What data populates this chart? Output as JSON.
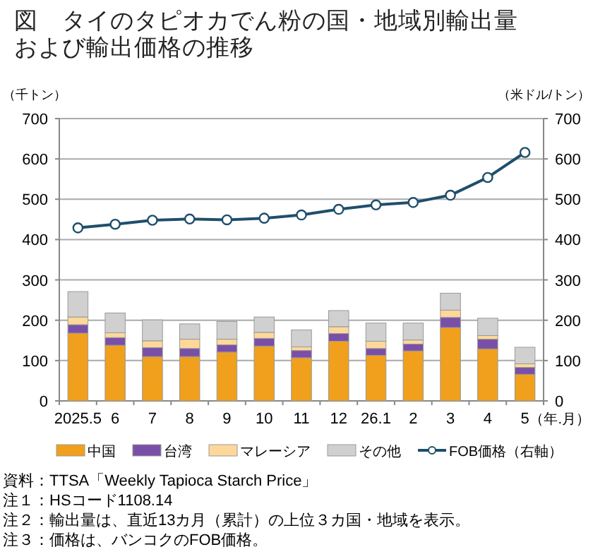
{
  "chart_data": {
    "type": "bar",
    "title": "図　タイのタピオカでん粉の国・地域別輸出量",
    "subtitle": "および輸出価格の推移",
    "ylabel": "（千トン）",
    "y2label": "（米ドル/トン）",
    "xlabel": "（年.月）",
    "categories": [
      "2025.5",
      "6",
      "7",
      "8",
      "9",
      "10",
      "11",
      "12",
      "26.1",
      "2",
      "3",
      "4",
      "5"
    ],
    "stacked": true,
    "grid": "y",
    "legend": "bottom",
    "ylim": [
      0,
      700
    ],
    "yticks": [
      0,
      100,
      200,
      300,
      400,
      500,
      600,
      700
    ],
    "y2lim": [
      0,
      700
    ],
    "y2ticks": [
      0,
      100,
      200,
      300,
      400,
      500,
      600,
      700
    ],
    "series": [
      {
        "name": "中国",
        "color": "#f0a01c",
        "values": [
          168,
          138,
          110,
          110,
          121,
          136,
          107,
          148,
          113,
          124,
          182,
          129,
          66
        ]
      },
      {
        "name": "台湾",
        "color": "#7a4fa8",
        "values": [
          21,
          19,
          22,
          20,
          18,
          19,
          18,
          19,
          17,
          17,
          25,
          24,
          17
        ]
      },
      {
        "name": "マレーシア",
        "color": "#fdd89a",
        "values": [
          19,
          12,
          17,
          23,
          14,
          15,
          9,
          17,
          18,
          10,
          18,
          9,
          9
        ]
      },
      {
        "name": "その他",
        "color": "#d0d0d0",
        "values": [
          63,
          49,
          52,
          38,
          44,
          38,
          42,
          40,
          45,
          42,
          42,
          43,
          41
        ]
      },
      {
        "name": "FOB価格（右軸）",
        "type": "line",
        "axis": "y2",
        "marker": "circle",
        "color": "#1f4e6b",
        "values": [
          429,
          438,
          448,
          451,
          449,
          453,
          461,
          475,
          486,
          492,
          510,
          554,
          616
        ]
      }
    ],
    "annotations": [
      "資料：TTSA「Weekly Tapioca Starch Price」",
      "注１：HSコード1108.14",
      "注２：輸出量は、直近13カ月（累計）の上位３カ国・地域を表示。",
      "注３：価格は、バンコクのFOB価格。"
    ]
  }
}
